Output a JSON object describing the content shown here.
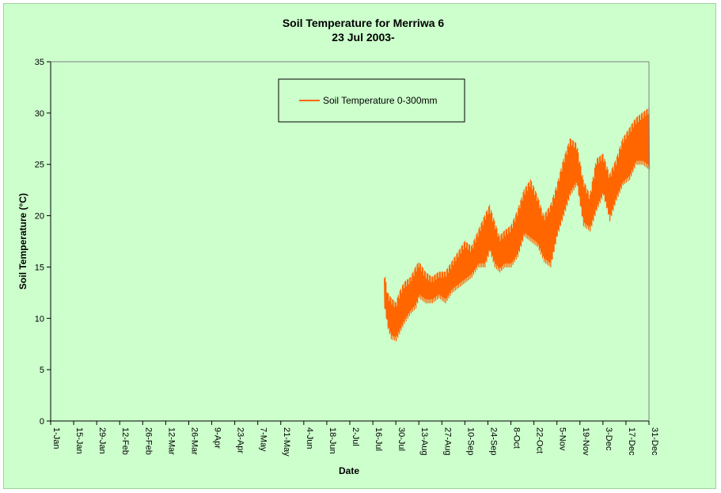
{
  "chart_data": {
    "type": "line",
    "title": "Soil Temperature for Merriwa 6",
    "subtitle": "23 Jul 2003-",
    "xlabel": "Date",
    "ylabel": "Soil Temperature (°C)",
    "ylim": [
      0,
      35
    ],
    "yticks": [
      "0",
      "5",
      "10",
      "15",
      "20",
      "25",
      "30",
      "35"
    ],
    "xlim_day_of_year": [
      1,
      365
    ],
    "xticks": [
      "1-Jan",
      "15-Jan",
      "29-Jan",
      "12-Feb",
      "26-Feb",
      "12-Mar",
      "26-Mar",
      "9-Apr",
      "23-Apr",
      "7-May",
      "21-May",
      "4-Jun",
      "18-Jun",
      "2-Jul",
      "16-Jul",
      "30-Jul",
      "13-Aug",
      "27-Aug",
      "10-Sep",
      "24-Sep",
      "8-Oct",
      "22-Oct",
      "5-Nov",
      "19-Nov",
      "3-Dec",
      "17-Dec",
      "31-Dec"
    ],
    "grid": false,
    "legend_position": "top-center",
    "series": [
      {
        "name": "Soil Temperature  0-300mm",
        "color": "#ff6600",
        "x": [
          "23-Jul",
          "25-Jul",
          "27-Jul",
          "30-Jul",
          "1-Aug",
          "4-Aug",
          "8-Aug",
          "11-Aug",
          "13-Aug",
          "17-Aug",
          "21-Aug",
          "25-Aug",
          "29-Aug",
          "2-Sep",
          "6-Sep",
          "10-Sep",
          "14-Sep",
          "18-Sep",
          "22-Sep",
          "25-Sep",
          "28-Sep",
          "1-Oct",
          "4-Oct",
          "8-Oct",
          "12-Oct",
          "16-Oct",
          "20-Oct",
          "24-Oct",
          "28-Oct",
          "1-Nov",
          "5-Nov",
          "9-Nov",
          "13-Nov",
          "17-Nov",
          "21-Nov",
          "25-Nov",
          "29-Nov",
          "3-Dec",
          "7-Dec",
          "11-Dec",
          "15-Dec",
          "19-Dec",
          "23-Dec",
          "27-Dec",
          "31-Dec"
        ],
        "min": [
          11.0,
          9.0,
          8.0,
          7.8,
          8.5,
          9.5,
          10.5,
          11.0,
          12.0,
          11.5,
          11.5,
          12.0,
          11.5,
          12.5,
          13.0,
          13.5,
          14.0,
          15.0,
          15.0,
          16.5,
          15.0,
          14.5,
          15.0,
          15.0,
          16.0,
          18.0,
          17.5,
          17.0,
          15.5,
          15.0,
          18.0,
          20.0,
          22.0,
          23.0,
          19.0,
          18.5,
          20.5,
          22.0,
          19.5,
          21.5,
          23.0,
          23.5,
          25.0,
          25.0,
          24.5
        ],
        "max": [
          14.5,
          12.5,
          12.0,
          11.5,
          12.5,
          13.5,
          14.0,
          15.0,
          15.5,
          14.5,
          14.0,
          14.5,
          14.5,
          15.5,
          16.5,
          17.5,
          17.0,
          18.5,
          20.0,
          21.0,
          19.5,
          18.0,
          18.5,
          19.0,
          20.5,
          22.5,
          23.5,
          22.0,
          20.0,
          21.0,
          23.0,
          25.5,
          27.5,
          27.0,
          23.5,
          22.0,
          25.5,
          26.0,
          24.0,
          25.5,
          27.5,
          28.5,
          29.5,
          30.0,
          30.5
        ]
      }
    ]
  }
}
